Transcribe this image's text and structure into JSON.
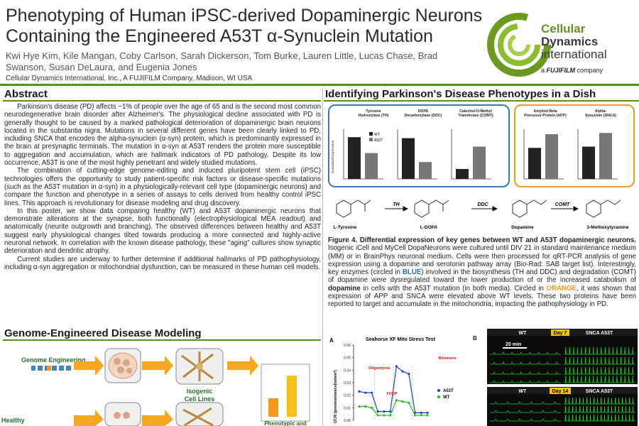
{
  "header": {
    "title_line1": "Phenotyping of Human iPSC-derived Dopaminergic Neurons",
    "title_line2": "Containing the Engineered A53T α-Synuclein Mutation",
    "authors": "Kwi Hye Kim, Kile Mangan, Coby Carlson, Sarah Dickerson, Tom Burke, Lauren Little, Lucas Chase, Brad Swanson, Susan DeLaura, and Eugenia Jones",
    "affiliation": "Cellular Dynamics International, Inc., A FUJIFILM Company, Madison, WI USA",
    "logo": {
      "line1": "Cellular",
      "line2": "Dynamics",
      "line3": "international",
      "tag_prefix": "a",
      "tag_brand": "FUJIFILM",
      "tag_suffix": "company"
    }
  },
  "abstract": {
    "heading": "Abstract",
    "paragraphs": [
      "Parkinson's disease (PD) affects ~1% of people over the age of 65 and is the second most common neurodegenerative brain disorder after Alzheimer's. The physiological decline associated with PD is generally thought to be caused by a marked pathological deterioration of dopaminergic brain neurons located in the substantia nigra. Mutations in several different genes have been clearly linked to PD, including SNCA that encodes the alpha-synuclein (α-syn) protein, which is predominantly expressed in the brain at presynaptic terminals. The mutation in α-syn at A53T renders the protein more susceptible to aggregation and accumulation, which are hallmark indicators of PD pathology. Despite its low occurrence, A53T is one of the most highly penetrant and widely studied mutations.",
      "The combination of cutting-edge genome-editing and induced pluripotent stem cell (iPSC) technologies offers the opportunity to study patient-specific risk factors or disease-specific mutations (such as the A53T mutation in α-syn) in a physiologically-relevant cell type (dopaminergic neurons) and compare the function and phenotype in a series of assays to cells derived from healthy control iPSC lines. This approach is revolutionary for disease modeling and drug discovery.",
      "In this poster, we show data comparing healthy (WT) and A53T dopaminergic neurons that demonstrate alterations at the synapse, both functionally (electrophysiological MEA readout) and anatomically (neurite outgrowth and branching). The observed differences between healthy and A53T suggest early physiological changes tilted towards producing a more connected and highly-active neuronal network. In correlation with the known disease pathology, these \"aging\" cultures show synaptic deterioration and dendritic atrophy.",
      "Current studies are underway to further determine if additional hallmarks of PD pathophysiology, including α-syn aggregation or mitochondrial dysfunction, can be measured in these human cell models."
    ]
  },
  "modeling": {
    "heading": "Genome-Engineered Disease Modeling",
    "genome_label": "Genome Engineering",
    "healthy_label": "Healthy",
    "isogenic_line1": "Isogenic",
    "isogenic_line2": "Cell Lines",
    "phenotypic_label": "Phenotypic and"
  },
  "pd_section": {
    "heading": "Identifying Parkinson's Disease Phenotypes in a Dish",
    "genes": [
      {
        "line1": "Tyrosine",
        "line2": "Hydroxylase (TH)"
      },
      {
        "line1": "DOPA",
        "line2": "Decarboxylase (DDC)"
      },
      {
        "line1": "Catechol-O-Methyl",
        "line2": "Transferase (COMT)"
      },
      {
        "line1": "Amyloid Beta",
        "line2": "Precursor Protein (APP)"
      },
      {
        "line1": "Alpha-",
        "line2": "Synuclein (SNCA)"
      }
    ],
    "ylabel": "Normalized Expression",
    "legend": [
      "WT",
      "A53T"
    ],
    "pathway": {
      "compounds": [
        "L-Tyrosine",
        "L-DOPA",
        "Dopamine",
        "3-Methoxytyramine"
      ],
      "enzymes": [
        "TH",
        "DDC",
        "COMT"
      ]
    },
    "figure_caption_bold": "Figure 4. Differential expression of key genes between WT and A53T dopaminergic neurons.",
    "figure_caption_1": " Isogenic iCell and MyCell DopaNeurons were cultured until DIV 21 in standard maintenance medium (MM) or in BrainPhys neuronal medium. Cells were then processed for qRT-PCR analysis of gene expression using a dopamine and serotonin pathway array (Bio-Rad: SAB target list). Interestingly, key enzymes (circled in ",
    "caption_blue": "BLUE",
    "figure_caption_2": ") involved in the biosynthesis (TH and DDC) and degradation (COMT) of dopamine were dysregulated toward the lower production of or the increased catabolism of ",
    "caption_dopamine": "dopamine",
    "figure_caption_3": " in cells with the A53T mutation (in both media). Circled in ",
    "caption_orange": "ORANGE",
    "figure_caption_4": ", it was shown that expression of APP and SNCA were elevated above WT levels. These two proteins have been reported to target and accumulate in the mitochondria, impacting the pathophysiology in PD."
  },
  "seahorse": {
    "panel_label": "A",
    "title": "Seahorse XF Mito Stress Test",
    "ylabel": "OCR (pmoles/min/cells/mm²)",
    "annotations": [
      "Oligomycin",
      "FCCP",
      "Rotenone"
    ],
    "legend": [
      "A53T",
      "WT"
    ],
    "yticks": [
      "0.00",
      "0.01",
      "0.02",
      "0.03",
      "0.04",
      "0.05",
      "0.06"
    ]
  },
  "mea": {
    "panel_label": "B",
    "row1": {
      "wt": "WT",
      "day": "Day 7",
      "snca": "SNCA A53T",
      "scale": "20 min"
    },
    "row2": {
      "wt": "WT",
      "day": "Day 14",
      "snca": "SNCA A53T"
    }
  },
  "chart_data": [
    {
      "type": "bar",
      "title": "",
      "gene": "TH",
      "categories": [
        "WT",
        "A53T"
      ],
      "values": [
        0.042,
        0.026
      ],
      "ylim": [
        0,
        0.05
      ]
    },
    {
      "type": "bar",
      "title": "",
      "gene": "DDC",
      "categories": [
        "WT",
        "A53T"
      ],
      "values": [
        0.041,
        0.017
      ],
      "ylim": [
        0,
        0.05
      ]
    },
    {
      "type": "bar",
      "title": "",
      "gene": "COMT",
      "categories": [
        "WT",
        "A53T"
      ],
      "values": [
        0.0004,
        0.0013
      ],
      "ylim": [
        0,
        0.002
      ]
    },
    {
      "type": "bar",
      "title": "",
      "gene": "APP",
      "categories": [
        "WT",
        "A53T"
      ],
      "values": [
        0.25,
        0.36
      ],
      "ylim": [
        0,
        0.4
      ]
    },
    {
      "type": "bar",
      "title": "",
      "gene": "SNCA",
      "categories": [
        "WT",
        "A53T"
      ],
      "values": [
        0.26,
        0.37
      ],
      "ylim": [
        0,
        0.4
      ]
    },
    {
      "type": "line",
      "title": "Seahorse XF Mito Stress Test",
      "ylabel": "OCR (pmoles/min/cells/mm²)",
      "x": [
        1,
        2,
        3,
        4,
        5,
        6,
        7,
        8,
        9,
        10,
        11,
        12
      ],
      "ylim": [
        0,
        0.06
      ],
      "series": [
        {
          "name": "A53T",
          "color": "#1f3fdc",
          "values": [
            0.023,
            0.022,
            0.022,
            0.007,
            0.007,
            0.007,
            0.043,
            0.039,
            0.037,
            0.006,
            0.006,
            0.006
          ]
        },
        {
          "name": "WT",
          "color": "#22bb22",
          "values": [
            0.011,
            0.011,
            0.01,
            0.004,
            0.004,
            0.004,
            0.016,
            0.015,
            0.014,
            0.004,
            0.004,
            0.004
          ]
        }
      ]
    }
  ]
}
